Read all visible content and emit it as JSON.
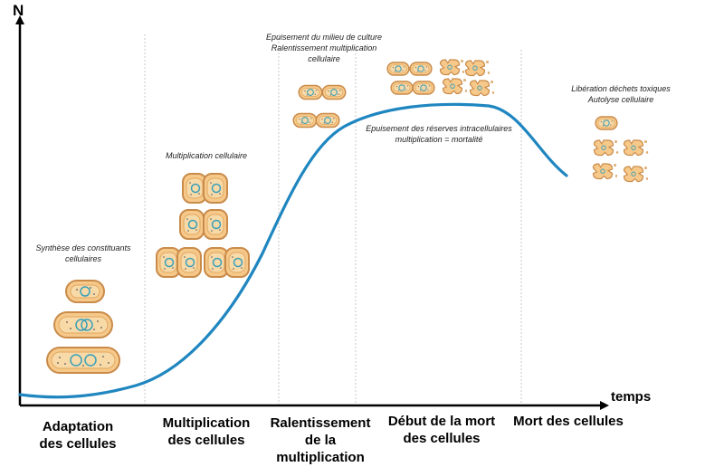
{
  "axes": {
    "y_label": "N",
    "x_label": "temps"
  },
  "phases": [
    {
      "label_line1": "Adaptation",
      "label_line2": "des cellules"
    },
    {
      "label_line1": "Multiplication",
      "label_line2": "des cellules"
    },
    {
      "label_line1": "Ralentissement",
      "label_line2": "de la",
      "label_line3": "multiplication"
    },
    {
      "label_line1": "Début de la mort",
      "label_line2": "des cellules"
    },
    {
      "label_line1": "Mort des cellules"
    }
  ],
  "notes": {
    "synthese_line1": "Synthèse des constituants",
    "synthese_line2": "cellulaires",
    "multiplication": "Multiplication cellulaire",
    "epuisement_milieu_line1": "Epuisement du milieu de culture",
    "epuisement_milieu_line2": "Ralentissement multiplication",
    "epuisement_milieu_line3": "cellulaire",
    "epuisement_reserves_line1": "Epuisement des réserves intracellulaires",
    "epuisement_reserves_line2": "multiplication = mortalité",
    "liberation_line1": "Libération déchets toxiques",
    "liberation_line2": "Autolyse cellulaire"
  },
  "colors": {
    "curve": "#1f86c0",
    "cell_fill": "#f6c98a",
    "cell_border": "#c98b4a",
    "nucleus": "#3aa0b8",
    "dots": "#5a5a5a",
    "divider": "#bdbdbd"
  }
}
